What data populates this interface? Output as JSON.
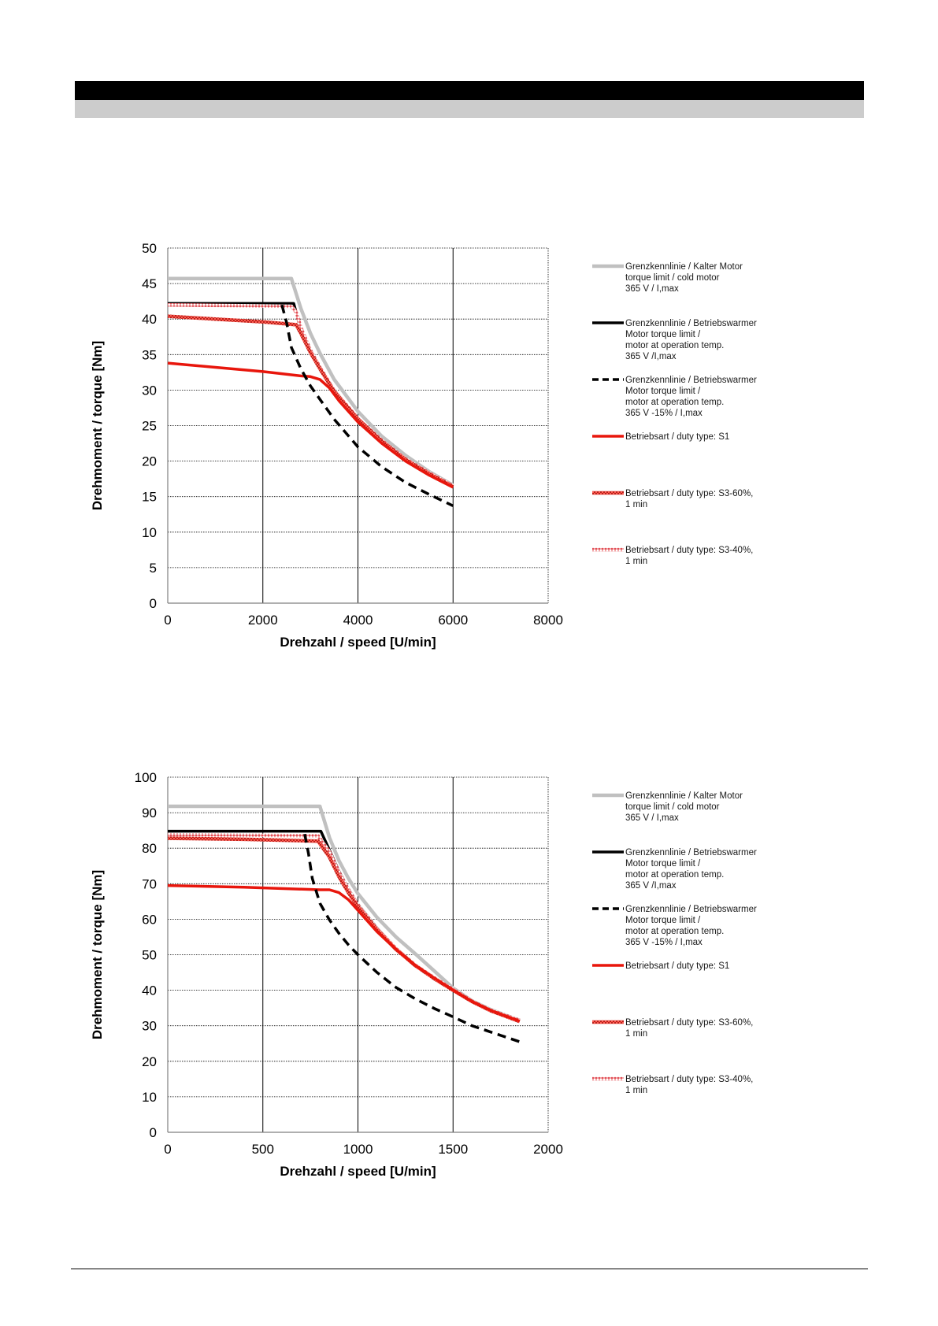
{
  "charts": [
    {
      "id": "chart-1",
      "type": "line",
      "title": "",
      "xlabel": "Drehzahl / speed [U/min]",
      "ylabel": "Drehmoment / torque [Nm]",
      "xlim": [
        0,
        8000
      ],
      "ylim": [
        0,
        50
      ],
      "xticks": [
        "0",
        "2000",
        "4000",
        "6000",
        "8000"
      ],
      "yticks": [
        "0",
        "5",
        "10",
        "15",
        "20",
        "25",
        "30",
        "35",
        "40",
        "45",
        "50"
      ],
      "series": [
        {
          "key": "cold",
          "legend": [
            "Grenzkennlinie / Kalter Motor",
            "torque limit / cold  motor",
            "365 V / I,max"
          ],
          "x": [
            0,
            2600,
            2800,
            3000,
            3200,
            3500,
            4000,
            4500,
            5000,
            5500,
            6000
          ],
          "y": [
            45.7,
            45.7,
            41.5,
            38.0,
            35.2,
            31.5,
            27.0,
            23.5,
            20.8,
            18.5,
            16.6
          ]
        },
        {
          "key": "warm",
          "legend": [
            "Grenzkennlinie / Betriebswarmer",
            "Motor             torque limit /",
            "motor at operation temp.",
            "365 V /I,max"
          ],
          "x": [
            0,
            2650,
            2800,
            3000,
            3200,
            3500,
            4000,
            4500,
            5000,
            5500,
            6000
          ],
          "y": [
            42.2,
            42.2,
            38.5,
            35.5,
            33.0,
            29.8,
            26.0,
            22.8,
            20.2,
            18.2,
            16.5
          ]
        },
        {
          "key": "warm-15",
          "legend": [
            "Grenzkennlinie / Betriebswarmer",
            "Motor             torque limit /",
            "motor at operation temp.",
            "365 V  -15% / I,max"
          ],
          "x": [
            2400,
            2500,
            2600,
            2800,
            3000,
            3200,
            3500,
            4000,
            4500,
            5000,
            5500,
            6000
          ],
          "y": [
            42.0,
            39.5,
            36.0,
            33.0,
            30.6,
            28.7,
            25.9,
            22.0,
            19.2,
            17.0,
            15.3,
            13.7
          ]
        },
        {
          "key": "s1",
          "legend": [
            "Betriebsart / duty type: S1"
          ],
          "x": [
            0,
            1000,
            2000,
            2800,
            3000,
            3200,
            3400,
            3600,
            4000,
            4500,
            5000,
            5500,
            6000
          ],
          "y": [
            33.8,
            33.2,
            32.6,
            32.0,
            31.9,
            31.5,
            30.3,
            28.5,
            25.5,
            22.5,
            20.0,
            18.0,
            16.3
          ]
        },
        {
          "key": "s3-60",
          "legend": [
            "Betriebsart / duty type: S3-60%,",
            "1 min"
          ],
          "x": [
            0,
            1000,
            2000,
            2700,
            2800,
            3000,
            3200,
            3500,
            4000,
            4500,
            5000,
            5500,
            6000
          ],
          "y": [
            40.4,
            40.0,
            39.6,
            39.2,
            38.0,
            35.3,
            33.0,
            29.8,
            25.9,
            22.8,
            20.2,
            18.2,
            16.4
          ]
        },
        {
          "key": "s3-40",
          "legend": [
            "Betriebsart / duty type: S3-40%,",
            "1 min"
          ],
          "x": [
            0,
            2600,
            2700,
            2800,
            3000,
            3200,
            3500,
            4000,
            4500,
            5000,
            5500,
            6000
          ],
          "y": [
            42.0,
            41.8,
            41.0,
            38.8,
            35.6,
            33.2,
            29.9,
            26.0,
            22.9,
            20.3,
            18.3,
            16.5
          ]
        }
      ]
    },
    {
      "id": "chart-2",
      "type": "line",
      "title": "",
      "xlabel": "Drehzahl / speed [U/min]",
      "ylabel": "Drehmoment / torque [Nm]",
      "xlim": [
        0,
        2000
      ],
      "ylim": [
        0,
        100
      ],
      "xticks": [
        "0",
        "500",
        "1000",
        "1500",
        "2000"
      ],
      "yticks": [
        "0",
        "10",
        "20",
        "30",
        "40",
        "50",
        "60",
        "70",
        "80",
        "90",
        "100"
      ],
      "series": [
        {
          "key": "cold",
          "legend": [
            "Grenzkennlinie / Kalter Motor",
            "torque limit / cold  motor",
            "365 V / I,max"
          ],
          "x": [
            0,
            800,
            850,
            900,
            950,
            1000,
            1100,
            1200,
            1300,
            1400,
            1500,
            1600,
            1700,
            1850
          ],
          "y": [
            91.8,
            91.8,
            83.0,
            76.5,
            71.5,
            67.2,
            60.5,
            55.0,
            50.3,
            45.5,
            40.6,
            37.0,
            34.5,
            31.5
          ]
        },
        {
          "key": "warm",
          "legend": [
            "Grenzkennlinie / Betriebswarmer",
            "Motor             torque limit /",
            "motor at operation temp.",
            "365 V /I,max"
          ],
          "x": [
            0,
            805,
            850,
            900,
            950,
            1000,
            1100,
            1200,
            1300,
            1400,
            1500,
            1600,
            1700,
            1850
          ],
          "y": [
            84.8,
            84.8,
            79.5,
            73.5,
            68.5,
            64.2,
            57.5,
            51.8,
            47.0,
            43.5,
            40.2,
            36.8,
            34.3,
            31.4
          ]
        },
        {
          "key": "warm-15",
          "legend": [
            "Grenzkennlinie / Betriebswarmer",
            "Motor             torque limit /",
            "motor at operation temp.",
            "365 V  -15% / I,max"
          ],
          "x": [
            720,
            740,
            760,
            800,
            850,
            900,
            950,
            1000,
            1100,
            1200,
            1300,
            1400,
            1500,
            1600,
            1700,
            1850
          ],
          "y": [
            84.0,
            78.5,
            71.5,
            64.5,
            59.8,
            56.0,
            52.8,
            50.0,
            45.0,
            40.8,
            37.6,
            34.9,
            32.5,
            30.0,
            28.2,
            25.5
          ]
        },
        {
          "key": "s1",
          "legend": [
            "Betriebsart / duty type: S1"
          ],
          "x": [
            0,
            400,
            800,
            850,
            900,
            950,
            1000,
            1100,
            1200,
            1300,
            1400,
            1500,
            1600,
            1700,
            1850
          ],
          "y": [
            69.5,
            69.0,
            68.3,
            68.3,
            67.5,
            65.5,
            62.5,
            56.5,
            51.5,
            47.0,
            43.5,
            40.0,
            36.8,
            34.3,
            31.3
          ]
        },
        {
          "key": "s3-60",
          "legend": [
            "Betriebsart / duty type: S3-60%,",
            "1 min"
          ],
          "x": [
            0,
            400,
            790,
            850,
            900,
            950,
            1000,
            1100,
            1200,
            1300,
            1400,
            1500,
            1600,
            1700,
            1850
          ],
          "y": [
            82.8,
            82.5,
            82.0,
            77.5,
            72.0,
            67.5,
            63.5,
            57.0,
            51.5,
            47.0,
            43.3,
            40.0,
            36.8,
            34.2,
            31.2
          ]
        },
        {
          "key": "s3-40",
          "legend": [
            "Betriebsart / duty type: S3-40%,",
            "1 min"
          ],
          "x": [
            0,
            790,
            850,
            900,
            950,
            1000,
            1100,
            1200,
            1300,
            1400,
            1500,
            1600,
            1700,
            1850
          ],
          "y": [
            83.8,
            83.5,
            79.0,
            73.2,
            68.3,
            64.0,
            57.3,
            51.7,
            47.1,
            43.5,
            40.2,
            36.9,
            34.3,
            31.5
          ]
        }
      ]
    }
  ],
  "styles": {
    "cold": {
      "color": "#c0c0c0",
      "dash": ""
    },
    "warm": {
      "color": "#000000",
      "dash": ""
    },
    "warm-15": {
      "color": "#000000",
      "dash": "11,7"
    },
    "s1": {
      "color": "#e8160c",
      "dash": ""
    },
    "s3-60": {
      "color": "#d4342e",
      "dash": "",
      "pattern": "dense"
    },
    "s3-40": {
      "color": "#ef8a8a",
      "dash": "",
      "pattern": "light"
    },
    "grid": "#000000",
    "axis": "#7f7f7f"
  }
}
